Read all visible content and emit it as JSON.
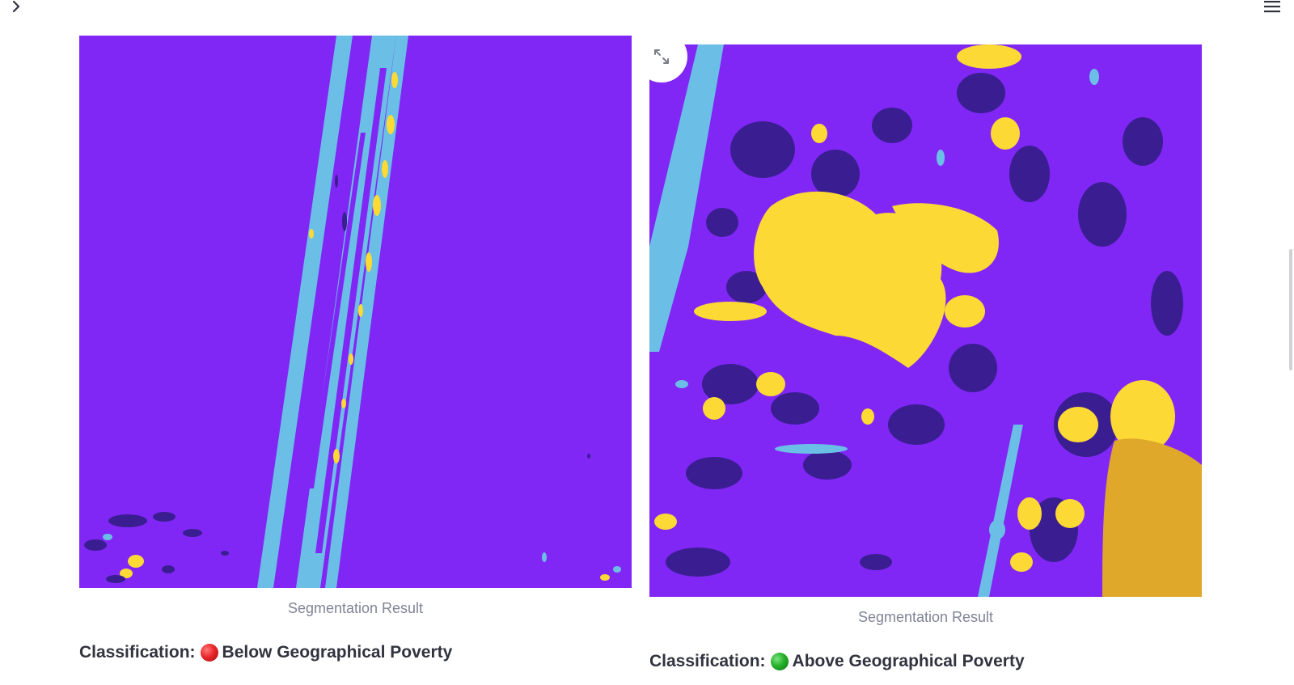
{
  "toolbar": {
    "sidebar_toggle_icon": "chevron-right-icon",
    "menu_icon": "hamburger-menu-icon"
  },
  "colors": {
    "background_class": "#8027f5",
    "water_class": "#6bbfe6",
    "building_class": "#fcd934",
    "dark_class": "#3a1e91",
    "bare_soil_class": "#e0a82a"
  },
  "left_result": {
    "caption": "Segmentation Result",
    "classification_label": "Classification:",
    "classification_icon": "red-circle-icon",
    "classification_value": "Below Geographical Poverty"
  },
  "right_result": {
    "caption": "Segmentation Result",
    "expand_icon": "expand-arrows-icon",
    "classification_label": "Classification:",
    "classification_icon": "green-circle-icon",
    "classification_value": "Above Geographical Poverty"
  }
}
